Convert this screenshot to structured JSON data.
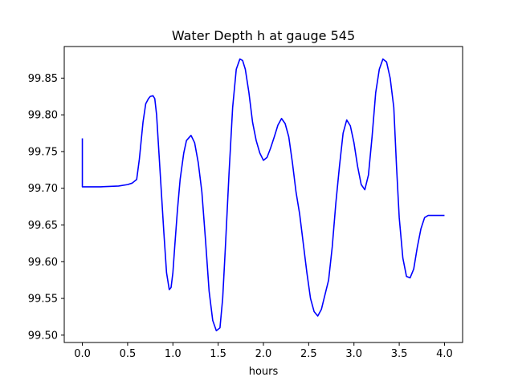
{
  "chart_data": {
    "type": "line",
    "title": "Water Depth h at gauge 545",
    "xlabel": "hours",
    "ylabel": "",
    "xlim": [
      -0.2,
      4.2
    ],
    "ylim": [
      99.49,
      99.893
    ],
    "grid": false,
    "x_ticks": [
      "0.0",
      "0.5",
      "1.0",
      "1.5",
      "2.0",
      "2.5",
      "3.0",
      "3.5",
      "4.0"
    ],
    "y_ticks": [
      "99.50",
      "99.55",
      "99.60",
      "99.65",
      "99.70",
      "99.75",
      "99.80",
      "99.85"
    ],
    "series": [
      {
        "color": "#0000ff",
        "x": [
          0.0,
          0.0,
          0.0,
          0.2,
          0.4,
          0.5,
          0.55,
          0.6,
          0.63,
          0.67,
          0.7,
          0.73,
          0.75,
          0.78,
          0.8,
          0.82,
          0.84,
          0.87,
          0.9,
          0.93,
          0.96,
          0.98,
          1.0,
          1.02,
          1.05,
          1.08,
          1.12,
          1.15,
          1.2,
          1.24,
          1.28,
          1.32,
          1.36,
          1.4,
          1.44,
          1.48,
          1.52,
          1.55,
          1.58,
          1.62,
          1.66,
          1.7,
          1.74,
          1.77,
          1.8,
          1.84,
          1.88,
          1.92,
          1.96,
          2.0,
          2.04,
          2.08,
          2.12,
          2.16,
          2.2,
          2.24,
          2.28,
          2.32,
          2.36,
          2.4,
          2.44,
          2.48,
          2.52,
          2.56,
          2.6,
          2.64,
          2.68,
          2.72,
          2.76,
          2.8,
          2.84,
          2.88,
          2.92,
          2.96,
          3.0,
          3.04,
          3.08,
          3.12,
          3.16,
          3.2,
          3.24,
          3.28,
          3.32,
          3.36,
          3.4,
          3.44,
          3.47,
          3.5,
          3.54,
          3.58,
          3.62,
          3.66,
          3.7,
          3.74,
          3.78,
          3.82,
          3.86,
          3.9,
          3.94,
          3.97,
          4.0
        ],
        "y": [
          99.768,
          99.73,
          99.702,
          99.702,
          99.703,
          99.705,
          99.707,
          99.712,
          99.74,
          99.79,
          99.815,
          99.822,
          99.825,
          99.826,
          99.822,
          99.8,
          99.76,
          99.7,
          99.64,
          99.585,
          99.562,
          99.565,
          99.585,
          99.62,
          99.67,
          99.712,
          99.748,
          99.765,
          99.772,
          99.762,
          99.735,
          99.695,
          99.63,
          99.56,
          99.52,
          99.506,
          99.51,
          99.55,
          99.62,
          99.72,
          99.81,
          99.862,
          99.876,
          99.874,
          99.862,
          99.83,
          99.79,
          99.765,
          99.748,
          99.738,
          99.742,
          99.755,
          99.77,
          99.786,
          99.795,
          99.788,
          99.77,
          99.735,
          99.695,
          99.665,
          99.625,
          99.585,
          99.55,
          99.532,
          99.526,
          99.535,
          99.555,
          99.575,
          99.62,
          99.68,
          99.73,
          99.775,
          99.793,
          99.785,
          99.762,
          99.73,
          99.705,
          99.698,
          99.718,
          99.77,
          99.83,
          99.862,
          99.876,
          99.872,
          99.85,
          99.81,
          99.73,
          99.66,
          99.605,
          99.58,
          99.578,
          99.59,
          99.62,
          99.645,
          99.66,
          99.663,
          99.663,
          99.663,
          99.663,
          99.663,
          99.663
        ]
      }
    ]
  }
}
